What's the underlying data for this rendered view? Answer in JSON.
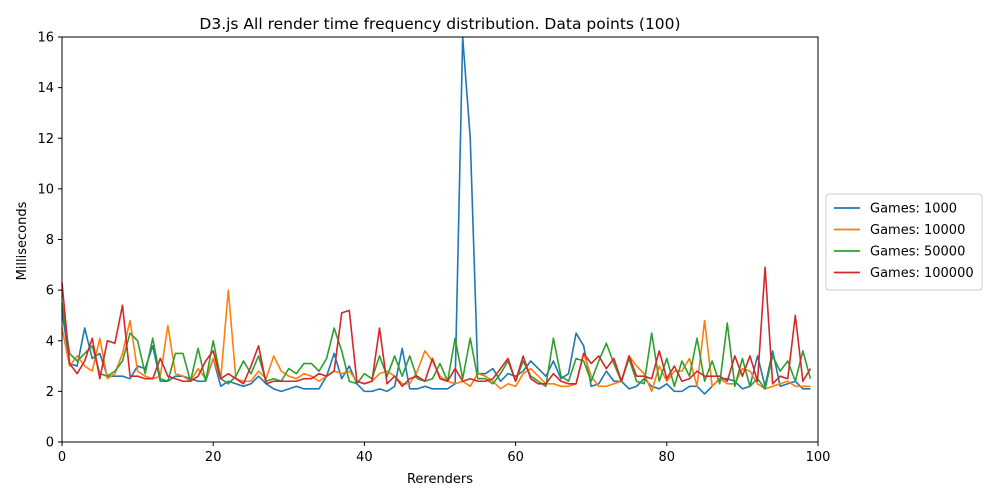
{
  "chart_data": {
    "type": "line",
    "title": "D3.js All render time frequency distribution. Data points (100)",
    "xlabel": "Rerenders",
    "ylabel": "Milliseconds",
    "xlim": [
      0,
      100
    ],
    "ylim": [
      0,
      16
    ],
    "xticks": [
      0,
      20,
      40,
      60,
      80,
      100
    ],
    "yticks": [
      0,
      2,
      4,
      6,
      8,
      10,
      12,
      14,
      16
    ],
    "grid": false,
    "legend_position": "center-right-outside",
    "series": [
      {
        "name": "Games: 1000",
        "color": "#1f77b4",
        "values": [
          5.2,
          3.1,
          3.0,
          4.5,
          3.3,
          3.5,
          2.6,
          2.6,
          2.6,
          2.5,
          3.0,
          2.9,
          3.8,
          2.4,
          2.4,
          2.6,
          2.6,
          2.5,
          2.4,
          2.4,
          3.3,
          2.2,
          2.4,
          2.3,
          2.2,
          2.3,
          2.6,
          2.3,
          2.1,
          2.0,
          2.1,
          2.2,
          2.1,
          2.1,
          2.1,
          2.6,
          3.5,
          2.5,
          3.0,
          2.3,
          2.0,
          2.0,
          2.1,
          2.0,
          2.2,
          3.7,
          2.1,
          2.1,
          2.2,
          2.1,
          2.1,
          2.1,
          2.3,
          16.0,
          12.0,
          2.7,
          2.7,
          2.9,
          2.4,
          2.7,
          2.6,
          2.8,
          3.2,
          2.9,
          2.6,
          3.2,
          2.5,
          2.7,
          4.3,
          3.8,
          2.2,
          2.3,
          2.8,
          2.4,
          2.4,
          2.1,
          2.2,
          2.5,
          2.2,
          2.1,
          2.3,
          2.0,
          2.0,
          2.2,
          2.2,
          1.9,
          2.2,
          2.5,
          2.5,
          2.4,
          2.1,
          2.2,
          3.4,
          2.2,
          3.6,
          2.2,
          2.3,
          2.4,
          2.1,
          2.1
        ]
      },
      {
        "name": "Games: 10000",
        "color": "#ff7f0e",
        "values": [
          4.5,
          3.0,
          3.4,
          3.0,
          2.8,
          4.1,
          2.5,
          2.7,
          3.5,
          4.8,
          2.8,
          2.6,
          2.5,
          2.6,
          4.6,
          2.7,
          2.6,
          2.4,
          2.9,
          2.5,
          3.3,
          2.5,
          6.0,
          2.5,
          2.4,
          2.4,
          2.8,
          2.5,
          3.4,
          2.8,
          2.6,
          2.5,
          2.7,
          2.6,
          2.4,
          2.6,
          2.8,
          2.7,
          2.8,
          2.4,
          2.3,
          2.4,
          2.7,
          2.8,
          2.6,
          2.3,
          2.3,
          2.8,
          3.6,
          3.2,
          2.6,
          2.4,
          2.3,
          2.4,
          2.2,
          2.7,
          2.6,
          2.4,
          2.1,
          2.3,
          2.2,
          2.7,
          2.9,
          2.6,
          2.3,
          2.3,
          2.2,
          2.2,
          2.3,
          3.5,
          2.6,
          2.2,
          2.2,
          2.3,
          2.4,
          3.4,
          3.0,
          2.7,
          2.0,
          3.0,
          2.4,
          2.8,
          2.8,
          3.3,
          2.2,
          4.8,
          2.2,
          2.5,
          2.3,
          2.3,
          2.9,
          2.8,
          2.3,
          2.1,
          2.2,
          2.3,
          2.4,
          2.2,
          2.2,
          2.2
        ]
      },
      {
        "name": "Games: 50000",
        "color": "#2ca02c",
        "values": [
          5.5,
          3.5,
          3.2,
          3.5,
          3.8,
          2.7,
          2.6,
          2.8,
          3.2,
          4.3,
          4.0,
          2.7,
          4.1,
          2.5,
          2.4,
          3.5,
          3.5,
          2.4,
          3.7,
          2.4,
          4.0,
          2.5,
          2.3,
          2.6,
          3.2,
          2.7,
          3.4,
          2.4,
          2.5,
          2.4,
          2.9,
          2.7,
          3.1,
          3.1,
          2.8,
          3.3,
          4.5,
          3.6,
          2.4,
          2.3,
          2.7,
          2.5,
          3.4,
          2.6,
          3.4,
          2.6,
          3.4,
          2.5,
          2.4,
          2.5,
          3.1,
          2.4,
          4.1,
          2.5,
          4.1,
          2.5,
          2.5,
          2.3,
          2.7,
          3.2,
          2.4,
          3.2,
          2.6,
          2.4,
          2.2,
          4.1,
          2.6,
          2.4,
          3.3,
          3.2,
          2.4,
          3.2,
          3.9,
          3.1,
          2.4,
          3.3,
          2.4,
          2.3,
          4.3,
          2.4,
          3.3,
          2.2,
          3.2,
          2.6,
          4.1,
          2.4,
          3.2,
          2.3,
          4.7,
          2.2,
          3.3,
          2.2,
          2.5,
          2.1,
          3.4,
          2.8,
          3.2,
          2.4,
          3.6,
          2.5
        ]
      },
      {
        "name": "Games: 100000",
        "color": "#d62728",
        "values": [
          6.3,
          3.1,
          2.7,
          3.2,
          4.1,
          2.5,
          4.0,
          3.9,
          5.4,
          2.6,
          2.6,
          2.5,
          2.5,
          3.3,
          2.6,
          2.5,
          2.4,
          2.4,
          2.6,
          3.2,
          3.6,
          2.5,
          2.7,
          2.5,
          2.3,
          3.0,
          3.8,
          2.3,
          2.4,
          2.4,
          2.4,
          2.4,
          2.5,
          2.5,
          2.7,
          2.6,
          2.8,
          5.1,
          5.2,
          2.4,
          2.3,
          2.4,
          4.5,
          2.3,
          2.6,
          2.2,
          2.5,
          2.6,
          2.4,
          3.3,
          2.5,
          2.4,
          2.9,
          2.4,
          2.5,
          2.4,
          2.4,
          2.5,
          2.9,
          3.3,
          2.4,
          3.4,
          2.5,
          2.3,
          2.3,
          2.7,
          2.4,
          2.3,
          2.3,
          3.5,
          3.1,
          3.4,
          2.9,
          3.3,
          2.4,
          3.4,
          2.6,
          2.6,
          2.5,
          3.6,
          2.5,
          3.0,
          2.4,
          2.5,
          2.8,
          2.6,
          2.6,
          2.6,
          2.4,
          3.4,
          2.6,
          3.4,
          2.4,
          6.9,
          2.3,
          2.6,
          2.5,
          5.0,
          2.4,
          2.9
        ]
      }
    ]
  }
}
